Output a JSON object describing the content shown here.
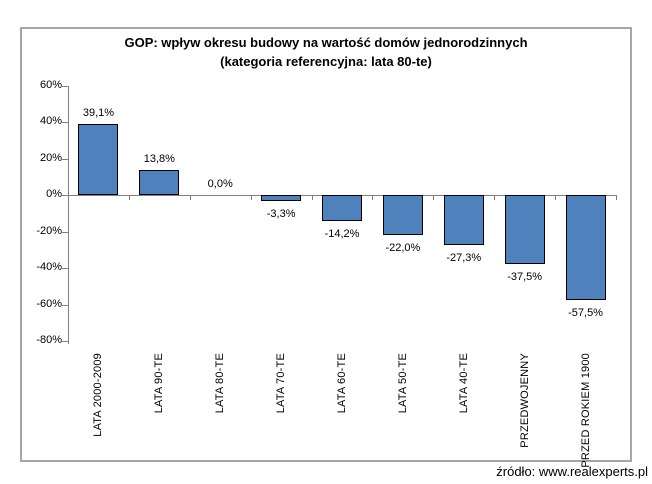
{
  "chart": {
    "title_line1": "GOP: wpływ okresu budowy na wartość domów jednorodzinnych",
    "title_line2": "(kategoria referencyjna: lata 80-te)",
    "source": "źródło: www.realexperts.pl",
    "colors": {
      "bar_fill": "#4F81BD",
      "bar_border": "#000000",
      "axis": "#808080",
      "frame_border": "#A6A6A6",
      "text": "#000000"
    }
  },
  "chart_data": {
    "type": "bar",
    "title": "GOP: wpływ okresu budowy na wartość domów jednorodzinnych (kategoria referencyjna: lata 80-te)",
    "xlabel": "",
    "ylabel": "",
    "categories": [
      "LATA 2000-2009",
      "LATA 90-TE",
      "LATA 80-TE",
      "LATA 70-TE",
      "LATA 60-TE",
      "LATA 50-TE",
      "LATA 40-TE",
      "PRZEDWOJENNY",
      "PRZED ROKIEM 1900"
    ],
    "values": [
      39.1,
      13.8,
      0.0,
      -3.3,
      -14.2,
      -22.0,
      -27.3,
      -37.5,
      -57.5
    ],
    "labels": [
      "39,1%",
      "13,8%",
      "0,0%",
      "-3,3%",
      "-14,2%",
      "-22,0%",
      "-27,3%",
      "-37,5%",
      "-57,5%"
    ],
    "ylim": [
      -80,
      60
    ],
    "yticks": [
      60,
      40,
      20,
      0,
      -20,
      -40,
      -60,
      -80
    ],
    "ytick_labels": [
      "60%",
      "40%",
      "20%",
      "0%",
      "-20%",
      "-40%",
      "-60%",
      "-80%"
    ],
    "grid": false,
    "legend": false
  }
}
